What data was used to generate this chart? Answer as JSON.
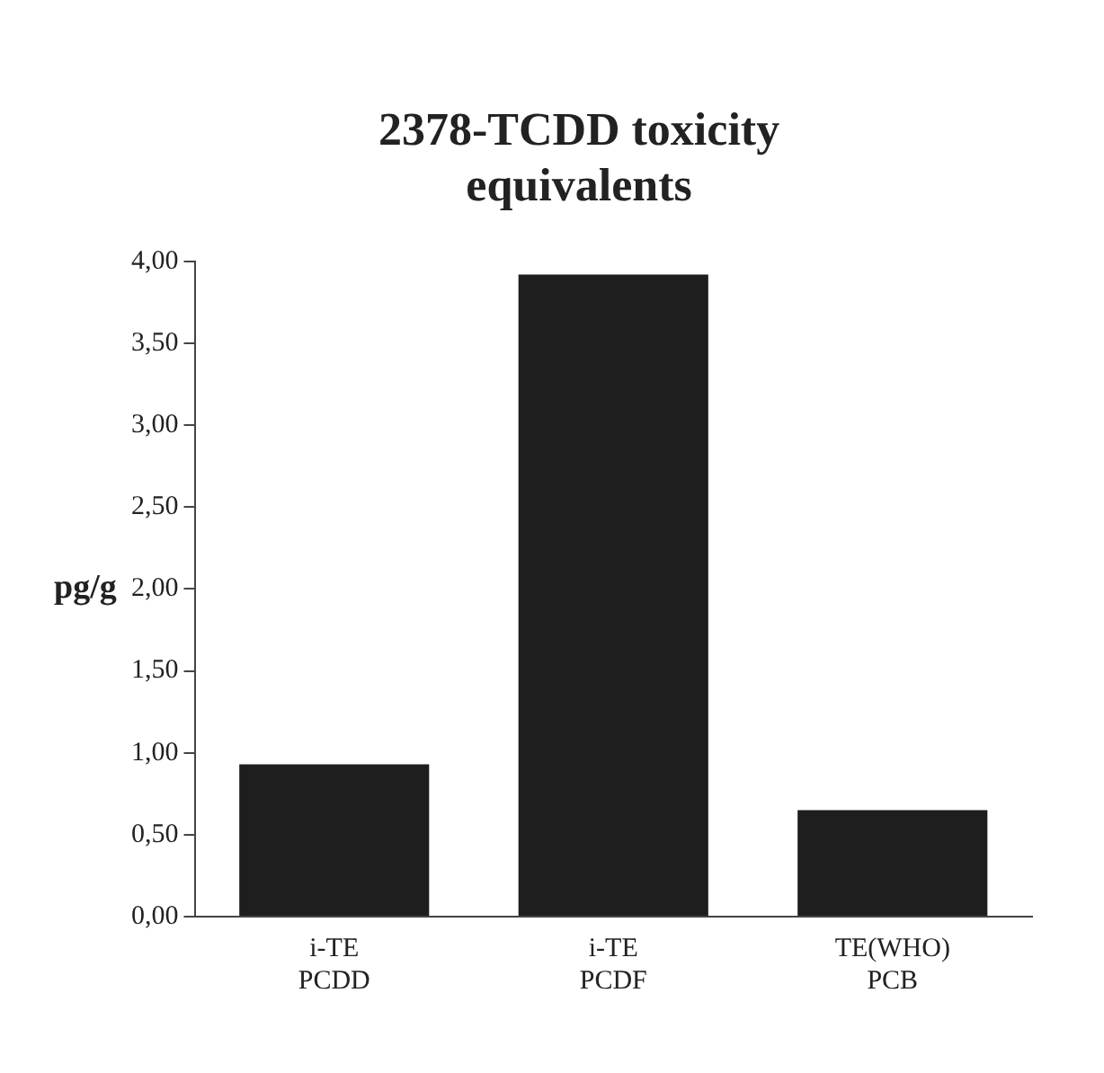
{
  "chart_data": {
    "type": "bar",
    "title": "2378-TCDD toxicity equivalents",
    "ylabel": "pg/g",
    "categories": [
      "i-TE PCDD",
      "i-TE PCDF",
      "TE(WHO) PCB"
    ],
    "values": [
      0.93,
      3.92,
      0.65
    ],
    "color": "#1e1e1e",
    "ylim": [
      0,
      4
    ],
    "yticks": [
      {
        "value": 0,
        "label": "0,00"
      },
      {
        "value": 0.5,
        "label": "0,50"
      },
      {
        "value": 1,
        "label": "1,00"
      },
      {
        "value": 1.5,
        "label": "1,50"
      },
      {
        "value": 2,
        "label": "2,00"
      },
      {
        "value": 2.5,
        "label": "2,50"
      },
      {
        "value": 3,
        "label": "3,00"
      },
      {
        "value": 3.5,
        "label": "3,50"
      },
      {
        "value": 4,
        "label": "4,00"
      }
    ],
    "grid": false,
    "legend": false
  }
}
